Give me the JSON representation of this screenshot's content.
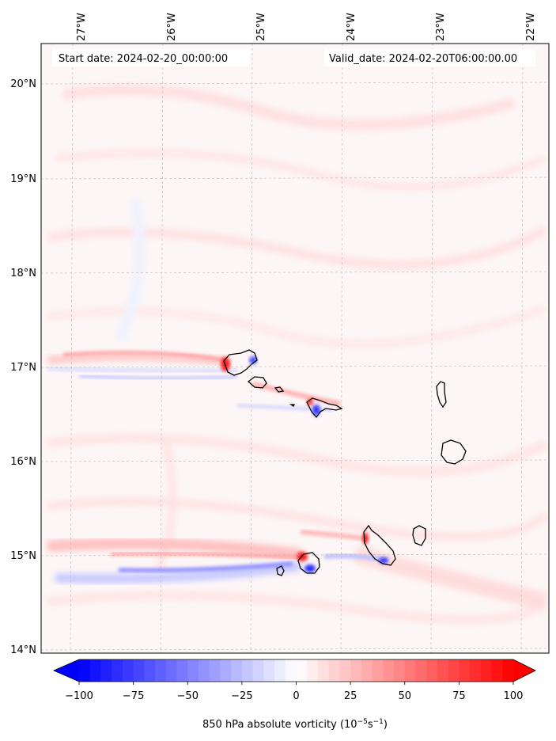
{
  "map": {
    "start_date_label": "Start date: 2024-02-20_00:00:00",
    "valid_date_label": "Valid_date: 2024-02-20T06:00:00.00",
    "lon_labels": [
      "27°W",
      "26°W",
      "25°W",
      "24°W",
      "23°W",
      "22°W"
    ],
    "lat_labels": [
      "20°N",
      "19°N",
      "18°N",
      "17°N",
      "16°N",
      "15°N",
      "14°N"
    ],
    "lon_range": [
      -27.35,
      -21.65
    ],
    "lat_range": [
      13.95,
      20.45
    ],
    "gridlines": true
  },
  "colorbar": {
    "ticks": [
      "−100",
      "−75",
      "−50",
      "−25",
      "0",
      "25",
      "50",
      "75",
      "100"
    ],
    "tick_values": [
      -100,
      -75,
      -50,
      -25,
      0,
      25,
      50,
      75,
      100
    ],
    "range": [
      -100,
      100
    ],
    "levels": 40,
    "extend": "both",
    "cmap": "bwr",
    "label_main": "850 hPa absolute vorticity (10",
    "label_exp1": "−5",
    "label_mid": "s",
    "label_exp2": "−1",
    "label_end": ")"
  },
  "colors": {
    "negative": "#0000ff",
    "zero": "#ffffff",
    "positive": "#ff0000",
    "coastline": "#000000"
  }
}
